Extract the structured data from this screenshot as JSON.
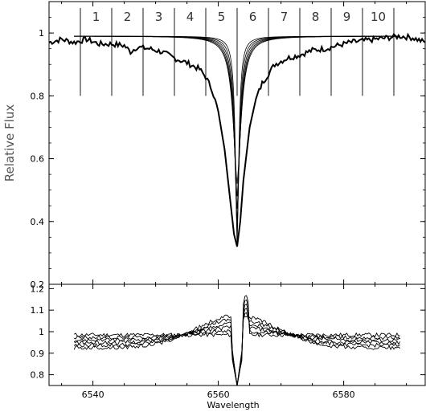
{
  "chart_data": [
    {
      "type": "line",
      "title": "",
      "xlabel": "",
      "ylabel": "Relative Flux",
      "xlim": [
        6533,
        6593
      ],
      "ylim": [
        0.2,
        1.1
      ],
      "x_ticks": [
        6540,
        6560,
        6580
      ],
      "y_ticks": [
        0.2,
        0.4,
        0.6,
        0.8,
        1
      ],
      "y_tick_labels": [
        "0.2",
        "0.4",
        "0.6",
        "0.8",
        "1"
      ],
      "line_center": 6563,
      "section_boundaries": [
        6538,
        6543,
        6548,
        6553,
        6558,
        6563,
        6568,
        6573,
        6578,
        6583,
        6588
      ],
      "section_labels": [
        "1",
        "2",
        "3",
        "4",
        "5",
        "6",
        "7",
        "8",
        "9",
        "10"
      ],
      "section_line_range": [
        0.8,
        1.08
      ],
      "model_profiles": {
        "x_range": [
          6537,
          6589
        ],
        "continuum": 0.99,
        "central_depths": [
          0.32,
          0.36,
          0.4,
          0.44,
          0.48,
          0.52
        ],
        "widths": [
          2.2,
          2.8,
          3.4,
          4.0,
          4.6,
          5.2
        ]
      },
      "observed": {
        "x": [
          6533,
          6535,
          6537,
          6539,
          6541,
          6543,
          6545,
          6546,
          6547,
          6549,
          6551,
          6553,
          6555,
          6557,
          6558,
          6559,
          6560,
          6561,
          6562,
          6562.5,
          6563,
          6563.5,
          6564,
          6565,
          6566,
          6567,
          6568,
          6569,
          6571,
          6573,
          6575,
          6577,
          6579,
          6581,
          6583,
          6585,
          6587,
          6589,
          6591,
          6593
        ],
        "y": [
          0.97,
          0.98,
          0.97,
          0.98,
          0.965,
          0.965,
          0.96,
          0.94,
          0.955,
          0.95,
          0.94,
          0.92,
          0.905,
          0.885,
          0.86,
          0.82,
          0.75,
          0.63,
          0.45,
          0.36,
          0.32,
          0.4,
          0.53,
          0.7,
          0.79,
          0.84,
          0.87,
          0.9,
          0.92,
          0.93,
          0.945,
          0.95,
          0.96,
          0.97,
          0.975,
          0.98,
          0.985,
          0.99,
          0.985,
          0.97
        ]
      }
    },
    {
      "type": "line",
      "title": "",
      "xlabel": "Wavelength",
      "ylabel": "",
      "xlim": [
        6533,
        6593
      ],
      "ylim": [
        0.75,
        1.22
      ],
      "x_ticks": [
        6540,
        6560,
        6580
      ],
      "x_tick_labels": [
        "6540",
        "6560",
        "6580"
      ],
      "y_ticks": [
        0.8,
        0.9,
        1.0,
        1.1,
        1.2
      ],
      "y_tick_labels": [
        "0.8",
        "0.9",
        "1",
        "1.1",
        "1.2"
      ],
      "residuals": {
        "x_range": [
          6537,
          6589
        ],
        "base": 0.985,
        "envelope_amplitudes": [
          0.0,
          0.03,
          0.06,
          0.09,
          0.12,
          0.15
        ],
        "envelope_widths": [
          9,
          9,
          9,
          9,
          9,
          9
        ],
        "dip_minimum": 0.75,
        "spike_maximum": 1.17
      }
    }
  ]
}
